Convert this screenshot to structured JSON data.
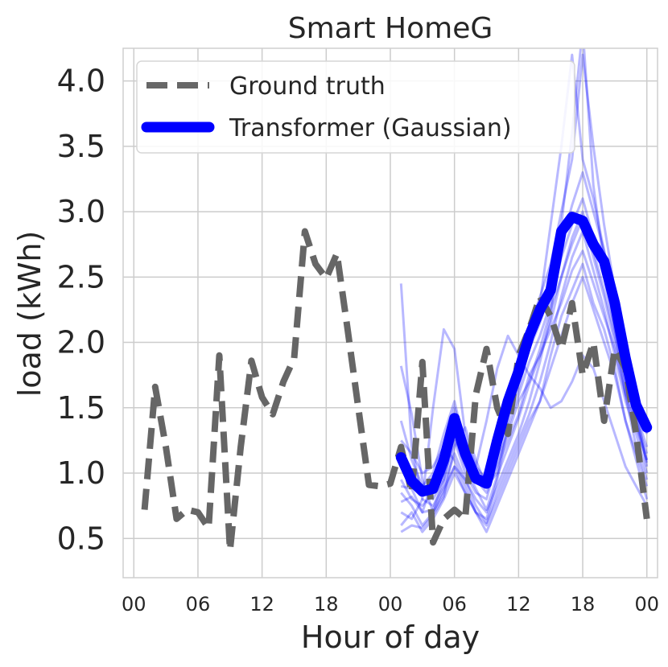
{
  "chart_data": {
    "type": "line",
    "title": "Smart HomeG",
    "xlabel": "Hour of day",
    "ylabel": "load (kWh)",
    "xlim": [
      -1,
      49
    ],
    "ylim": [
      0.2,
      4.25
    ],
    "x_ticks": [
      0,
      6,
      12,
      18,
      24,
      30,
      36,
      42,
      48
    ],
    "x_tick_labels": [
      "00",
      "06",
      "12",
      "18",
      "00",
      "06",
      "12",
      "18",
      "00"
    ],
    "y_ticks": [
      0.5,
      1.0,
      1.5,
      2.0,
      2.5,
      3.0,
      3.5,
      4.0
    ],
    "y_tick_labels": [
      "0.5",
      "1.0",
      "1.5",
      "2.0",
      "2.5",
      "3.0",
      "3.5",
      "4.0"
    ],
    "grid": true,
    "legend_position": "top-left",
    "legend": [
      {
        "label": "Ground truth",
        "color": "#666666",
        "style": "dashed"
      },
      {
        "label": "Transformer (Gaussian)",
        "color": "#0000ff",
        "style": "solid"
      }
    ],
    "series": [
      {
        "name": "Ground truth",
        "color": "#666666",
        "x": [
          1,
          2,
          3,
          4,
          5,
          6,
          7,
          8,
          9,
          10,
          11,
          12,
          13,
          14,
          15,
          16,
          17,
          18,
          19,
          20,
          21,
          22,
          23,
          24,
          25,
          26,
          27,
          28,
          29,
          30,
          31,
          32,
          33,
          34,
          35,
          36,
          37,
          38,
          39,
          40,
          41,
          42,
          43,
          44,
          45,
          46,
          47,
          48
        ],
        "y": [
          0.72,
          1.66,
          1.2,
          0.65,
          0.72,
          0.7,
          0.58,
          1.9,
          0.41,
          1.2,
          1.86,
          1.58,
          1.45,
          1.7,
          1.88,
          2.85,
          2.6,
          2.49,
          2.68,
          2.1,
          1.5,
          0.91,
          0.9,
          0.92,
          1.2,
          0.85,
          1.85,
          0.47,
          0.65,
          0.72,
          0.65,
          1.6,
          1.95,
          1.5,
          1.3,
          1.9,
          2.1,
          2.35,
          2.2,
          1.95,
          2.3,
          1.75,
          2.0,
          1.4,
          1.95,
          1.8,
          1.3,
          0.65
        ]
      },
      {
        "name": "Transformer (Gaussian)",
        "color": "#0000ff",
        "x": [
          25,
          26,
          27,
          28,
          29,
          30,
          31,
          32,
          33,
          34,
          35,
          36,
          37,
          38,
          39,
          40,
          41,
          42,
          43,
          44,
          45,
          46,
          47,
          48
        ],
        "y": [
          1.12,
          0.94,
          0.86,
          0.88,
          1.1,
          1.42,
          1.15,
          0.96,
          0.92,
          1.25,
          1.55,
          1.78,
          2.05,
          2.25,
          2.4,
          2.85,
          2.96,
          2.93,
          2.75,
          2.62,
          2.3,
          1.88,
          1.52,
          1.35
        ]
      }
    ],
    "samples": {
      "color": "#0000ff",
      "opacity": 0.28,
      "x": [
        25,
        26,
        27,
        28,
        29,
        30,
        31,
        32,
        33,
        34,
        35,
        36,
        37,
        38,
        39,
        40,
        41,
        42,
        43,
        44,
        45,
        46,
        47,
        48
      ],
      "lines": [
        [
          2.45,
          1.2,
          0.8,
          1.5,
          2.1,
          1.95,
          1.3,
          1.05,
          1.4,
          1.8,
          2.05,
          1.9,
          1.75,
          1.65,
          1.5,
          1.55,
          1.7,
          1.9,
          1.8,
          1.55,
          1.3,
          1.05,
          0.9,
          0.75
        ],
        [
          1.82,
          1.45,
          0.95,
          0.7,
          0.88,
          1.05,
          0.95,
          0.8,
          0.7,
          0.9,
          1.1,
          1.3,
          1.55,
          1.85,
          2.2,
          2.9,
          3.6,
          4.4,
          3.2,
          2.6,
          2.1,
          1.6,
          1.2,
          0.95
        ],
        [
          1.4,
          1.1,
          0.9,
          1.0,
          1.3,
          1.55,
          1.2,
          1.0,
          0.95,
          1.25,
          1.5,
          1.7,
          2.0,
          2.3,
          2.9,
          3.5,
          4.2,
          3.4,
          3.1,
          2.7,
          2.2,
          1.7,
          1.4,
          1.1
        ],
        [
          0.6,
          0.7,
          0.55,
          0.65,
          0.8,
          1.0,
          0.85,
          0.7,
          0.6,
          0.8,
          1.0,
          1.2,
          1.4,
          1.55,
          1.9,
          2.2,
          2.4,
          2.6,
          2.3,
          2.1,
          1.8,
          1.4,
          1.1,
          0.8
        ],
        [
          0.95,
          0.8,
          0.75,
          0.85,
          1.0,
          1.3,
          1.1,
          0.95,
          0.85,
          1.05,
          1.25,
          1.45,
          1.75,
          1.9,
          2.1,
          2.3,
          2.55,
          2.7,
          2.45,
          2.2,
          1.95,
          1.6,
          1.35,
          1.1
        ],
        [
          0.78,
          0.82,
          0.7,
          0.95,
          1.2,
          1.1,
          0.9,
          0.7,
          0.65,
          0.95,
          1.35,
          1.6,
          1.85,
          2.05,
          2.3,
          2.65,
          2.9,
          3.1,
          2.8,
          2.5,
          2.1,
          1.75,
          1.45,
          1.2
        ],
        [
          1.05,
          1.0,
          0.9,
          0.8,
          0.95,
          1.25,
          1.0,
          0.85,
          0.8,
          1.1,
          1.3,
          1.55,
          1.7,
          1.95,
          2.25,
          2.5,
          2.8,
          3.0,
          2.7,
          2.4,
          2.05,
          1.7,
          1.4,
          1.15
        ],
        [
          0.7,
          0.65,
          0.8,
          0.75,
          0.9,
          1.15,
          0.95,
          0.75,
          0.62,
          0.85,
          1.05,
          1.25,
          1.45,
          1.7,
          2.0,
          2.35,
          2.65,
          2.85,
          2.55,
          2.25,
          1.9,
          1.55,
          1.3,
          1.0
        ],
        [
          1.25,
          1.15,
          1.0,
          1.05,
          1.2,
          1.5,
          1.25,
          1.05,
          0.95,
          1.2,
          1.45,
          1.65,
          1.95,
          2.15,
          2.4,
          2.75,
          3.05,
          3.3,
          3.0,
          2.7,
          2.35,
          1.95,
          1.6,
          1.3
        ],
        [
          0.85,
          0.75,
          0.6,
          0.7,
          0.85,
          1.05,
          0.85,
          0.7,
          0.55,
          0.75,
          0.95,
          1.15,
          1.35,
          1.55,
          1.8,
          2.05,
          2.3,
          2.5,
          2.25,
          2.0,
          1.75,
          1.4,
          1.15,
          0.9
        ],
        [
          0.55,
          0.6,
          0.58,
          0.68,
          0.82,
          1.2,
          1.35,
          1.1,
          0.9,
          1.0,
          1.4,
          1.75,
          2.1,
          2.35,
          2.6,
          3.0,
          3.4,
          4.2,
          3.5,
          2.9,
          2.4,
          1.9,
          1.5,
          1.05
        ],
        [
          0.9,
          0.88,
          0.7,
          0.72,
          0.95,
          1.28,
          1.05,
          0.88,
          0.72,
          0.98,
          1.2,
          1.42,
          1.68,
          1.9,
          2.15,
          2.5,
          2.75,
          2.95,
          2.65,
          2.35,
          2.0,
          1.62,
          1.38,
          1.08
        ]
      ]
    }
  }
}
